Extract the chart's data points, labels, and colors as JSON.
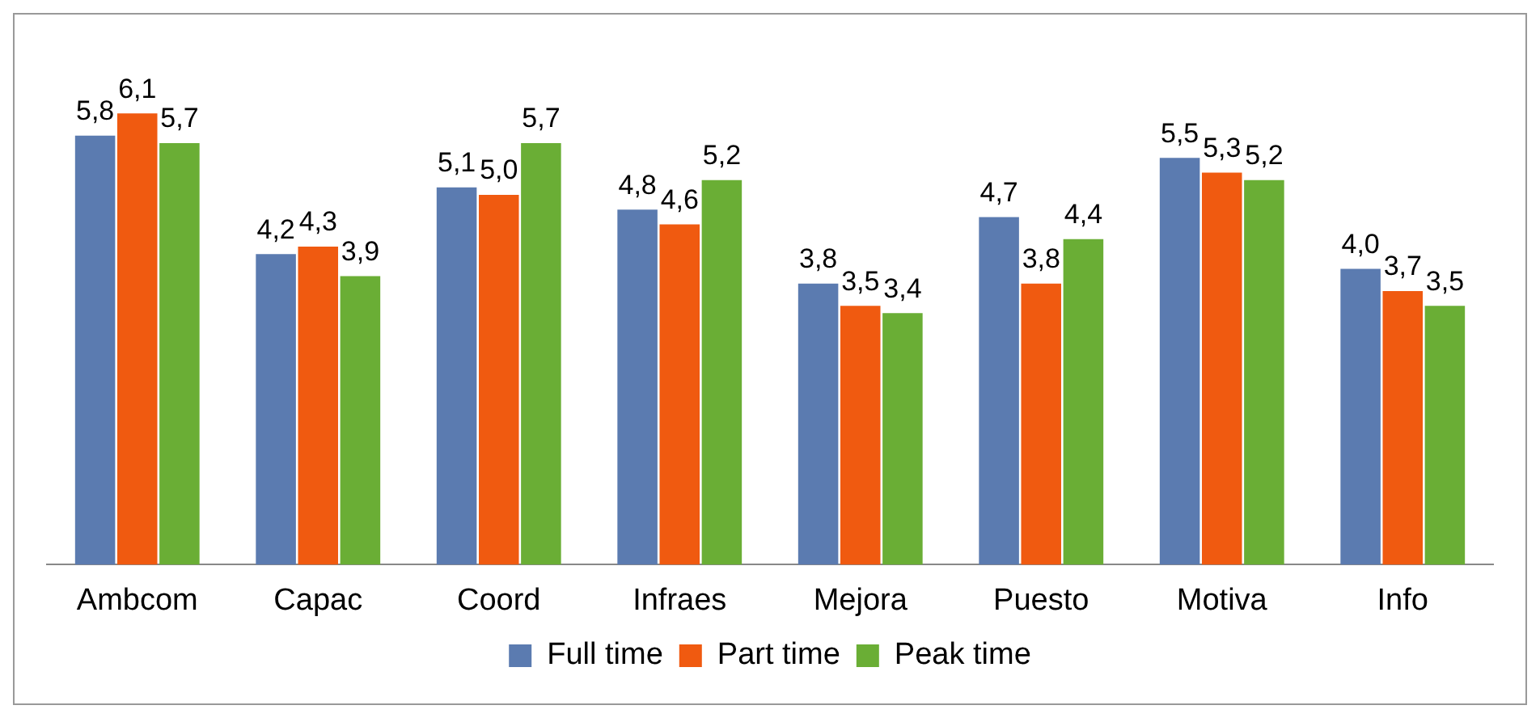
{
  "chart_data": {
    "type": "bar",
    "categories": [
      "Ambcom",
      "Capac",
      "Coord",
      "Infraes",
      "Mejora",
      "Puesto",
      "Motiva",
      "Info"
    ],
    "series": [
      {
        "name": "Full time",
        "color": "#5b7bb0",
        "values": [
          5.8,
          4.2,
          5.1,
          4.8,
          3.8,
          4.7,
          5.5,
          4.0
        ],
        "value_labels": [
          "5,8",
          "4,2",
          "5,1",
          "4,8",
          "3,8",
          "4,7",
          "5,5",
          "4,0"
        ]
      },
      {
        "name": "Part time",
        "color": "#f05a10",
        "values": [
          6.1,
          4.3,
          5.0,
          4.6,
          3.5,
          3.8,
          5.3,
          3.7
        ],
        "value_labels": [
          "6,1",
          "4,3",
          "5,0",
          "4,6",
          "3,5",
          "3,8",
          "5,3",
          "3,7"
        ]
      },
      {
        "name": "Peak time",
        "color": "#6aae35",
        "values": [
          5.7,
          3.9,
          5.7,
          5.2,
          3.4,
          4.4,
          5.2,
          3.5
        ],
        "value_labels": [
          "5,7",
          "3,9",
          "5,7",
          "5,2",
          "3,4",
          "4,4",
          "5,2",
          "3,5"
        ]
      }
    ],
    "tick_labels": "x",
    "grid": false,
    "legend": "bottom"
  }
}
